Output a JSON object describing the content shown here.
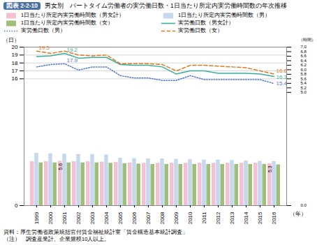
{
  "chart_data": {
    "type": "bar",
    "subtitle": "図表 2-2-10",
    "title": "男女別　パートタイム労働者の実労働日数・1日当たり所定内実労働時間数の年次推移",
    "x_label": "（年）",
    "y_label": "（日）",
    "y2_label": "（時間）",
    "categories": [
      1999,
      2000,
      2001,
      2002,
      2003,
      2004,
      2005,
      2006,
      2007,
      2008,
      2009,
      2010,
      2011,
      2012,
      2013,
      2014,
      2015,
      2016
    ],
    "series": [
      {
        "name": "1日当たり所定内実労働時間数（男女計）",
        "type": "bar",
        "color": "#f5c0cf",
        "values": [
          5.55,
          5.55,
          5.6,
          5.55,
          5.55,
          5.5,
          5.45,
          5.4,
          5.35,
          5.35,
          5.35,
          5.35,
          5.35,
          5.35,
          5.35,
          5.35,
          5.35,
          5.3
        ]
      },
      {
        "name": "1日当たり所定内実労働時間数（男）",
        "type": "bar",
        "color": "#c5d8f0",
        "values": [
          6.6,
          6.55,
          6.5,
          6.45,
          6.45,
          6.4,
          6.0,
          5.95,
          5.9,
          5.9,
          5.85,
          5.8,
          5.75,
          5.75,
          5.7,
          5.65,
          5.6,
          5.55
        ]
      },
      {
        "name": "1日当たり所定内実労働時間数（女）",
        "type": "bar",
        "color": "#9dbf7a",
        "values": [
          5.4,
          5.4,
          5.4,
          5.4,
          5.4,
          5.35,
          5.3,
          5.25,
          5.2,
          5.2,
          5.2,
          5.2,
          5.2,
          5.2,
          5.2,
          5.2,
          5.2,
          5.15
        ]
      },
      {
        "name": "実労働日数（男女計）",
        "type": "line",
        "color": "#3aae9a",
        "line_style": "solid",
        "values": [
          18.8,
          18.9,
          19.2,
          18.6,
          18.7,
          18.7,
          17.8,
          17.7,
          17.7,
          17.5,
          16.6,
          17.0,
          17.0,
          16.7,
          16.7,
          16.7,
          16.6,
          16.3
        ]
      },
      {
        "name": "実労働日数（男）",
        "type": "line",
        "color": "#5577cc",
        "line_style": "dotted",
        "values": [
          17.5,
          17.8,
          17.9,
          17.1,
          17.5,
          17.5,
          16.4,
          16.1,
          16.1,
          15.8,
          15.8,
          16.4,
          15.9,
          15.9,
          15.9,
          15.9,
          15.9,
          15.4
        ]
      },
      {
        "name": "実労働日数（女）",
        "type": "line",
        "color": "#e07820",
        "line_style": "dashed",
        "values": [
          19.5,
          19.2,
          19.5,
          19.0,
          18.9,
          19.0,
          17.9,
          17.9,
          17.9,
          17.8,
          17.0,
          17.7,
          17.7,
          17.6,
          17.5,
          17.4,
          17.0,
          16.6
        ]
      }
    ],
    "ylim": [
      0,
      20
    ],
    "yticks": [
      0,
      16,
      17,
      18,
      19,
      20
    ],
    "y2lim": [
      0,
      7
    ],
    "y2ticks": [
      {
        "value": 0,
        "label": "0.0"
      },
      {
        "value": 5,
        "label": "5.0"
      },
      5.2,
      5.4,
      5.6,
      5.8,
      {
        "value": 6,
        "label": "6.0"
      },
      6.2,
      6.4,
      6.6,
      6.8,
      {
        "value": 7,
        "label": "7.0"
      }
    ],
    "grid": true,
    "legend": "top",
    "annotations": [
      {
        "text": "19.5",
        "x": 1999,
        "y": 19.5,
        "series": "実労働日数（女）"
      },
      {
        "text": "19.2",
        "x": 2001,
        "y": 19.2,
        "series": "実労働日数（男女計）"
      },
      {
        "text": "17.9",
        "x": 2001,
        "y": 17.9,
        "series": "実労働日数（男）"
      },
      {
        "text": "5.6",
        "x": 2001,
        "y": 5.6,
        "series": "1日当たり所定内実労働時間数（男女計）"
      },
      {
        "text": "16.6",
        "x": 2016,
        "y": 16.6,
        "series": "実労働日数（女）"
      },
      {
        "text": "16.3",
        "x": 2016,
        "y": 16.3,
        "series": "実労働日数（男女計）"
      },
      {
        "text": "15.4",
        "x": 2016,
        "y": 15.4,
        "series": "実労働日数（男）"
      },
      {
        "text": "5.3",
        "x": 2016,
        "y": 5.3,
        "series": "1日当たり所定内実労働時間数（男女計）"
      }
    ],
    "caption": [
      "資料：厚生労働省政策統括官付賃金福祉統計室「賃金構造基本統計調査」",
      "（注）　調査産業計、企業規模10人以上。"
    ]
  }
}
